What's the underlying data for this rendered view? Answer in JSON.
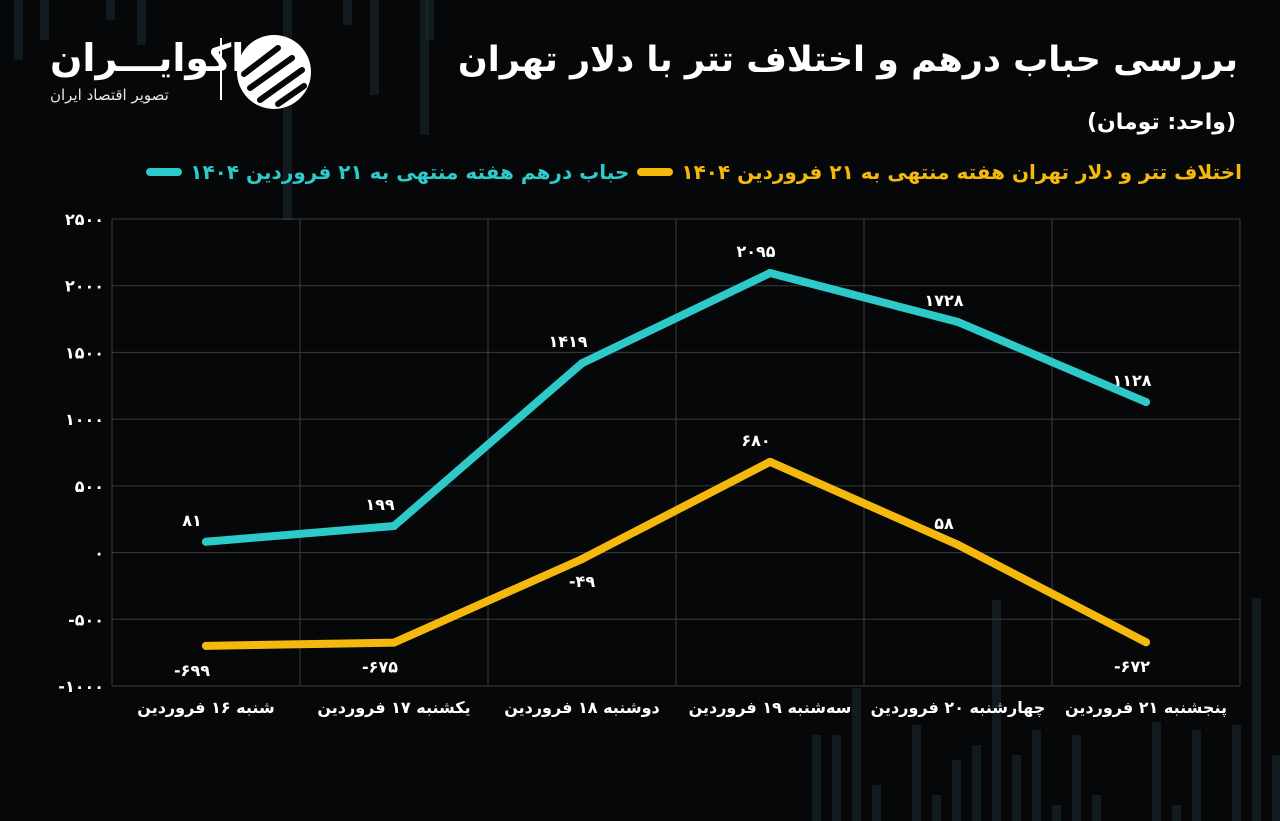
{
  "header": {
    "title": "بررسی حباب درهم و اختلاف تتر با دلار تهران",
    "unit": "(واحد: تومان)"
  },
  "brand": {
    "name": "اکوایـــران",
    "tagline": "تصویر اقتصاد ایران"
  },
  "colors": {
    "background": "#050708",
    "series_teal": "#2ec9c9",
    "series_gold": "#f5b90e",
    "grid": "#3a3d40",
    "text": "#ffffff"
  },
  "chart_data": {
    "type": "line",
    "categories": [
      "شنبه ۱۶ فروردین",
      "یکشنبه ۱۷ فروردین",
      "دوشنبه ۱۸ فروردین",
      "سه‌شنبه ۱۹ فروردین",
      "چهارشنبه ۲۰ فروردین",
      "پنجشنبه ۲۱ فروردین"
    ],
    "series": [
      {
        "name": "حباب درهم هفته منتهی به ۲۱ فروردین ۱۴۰۴",
        "color": "#2ec9c9",
        "values": [
          81,
          199,
          1419,
          2095,
          1728,
          1128
        ],
        "labels": [
          "۸۱",
          "۱۹۹",
          "۱۴۱۹",
          "۲۰۹۵",
          "۱۷۲۸",
          "۱۱۲۸"
        ]
      },
      {
        "name": "اختلاف تتر و دلار تهران هفته منتهی به ۲۱ فروردین ۱۴۰۴",
        "color": "#f5b90e",
        "values": [
          -699,
          -675,
          -49,
          680,
          58,
          -672
        ],
        "labels": [
          "-۶۹۹",
          "-۶۷۵",
          "-۴۹",
          "۶۸۰",
          "۵۸",
          "-۶۷۲"
        ]
      }
    ],
    "yticks": [
      2500,
      2000,
      1500,
      1000,
      500,
      0,
      -500,
      -1000
    ],
    "ytick_labels": [
      "۲۵۰۰",
      "۲۰۰۰",
      "۱۵۰۰",
      "۱۰۰۰",
      "۵۰۰",
      "۰",
      "-۵۰۰",
      "-۱۰۰۰"
    ],
    "ylim": [
      -1000,
      2500
    ],
    "grid": true,
    "legend_position": "top-right"
  }
}
